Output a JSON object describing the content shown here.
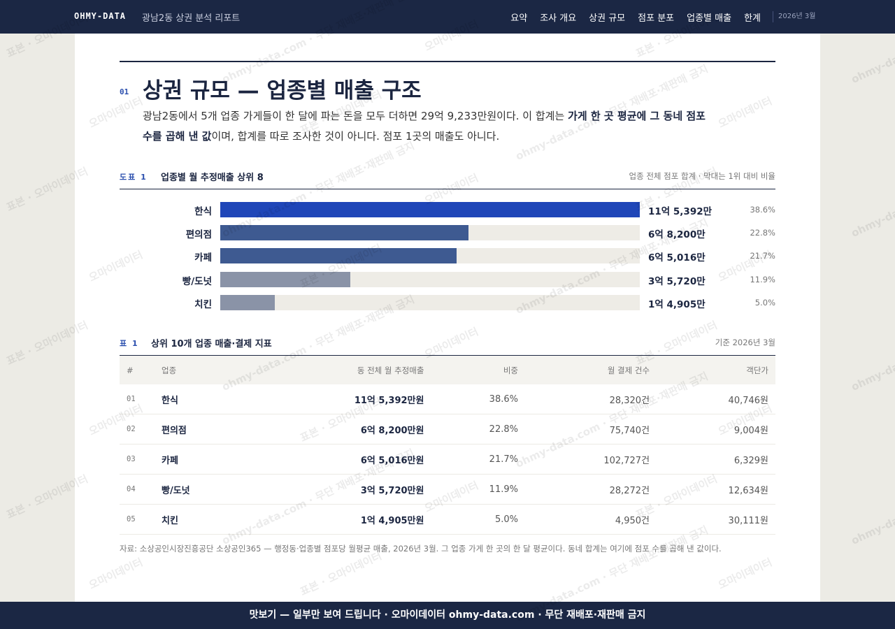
{
  "header": {
    "brand": "OHMY-DATA",
    "subtitle": "광남2동 상권 분석 리포트",
    "nav": [
      "요약",
      "조사 개요",
      "상권 규모",
      "점포 분포",
      "업종별 매출",
      "한계"
    ],
    "date": "2026년 3월"
  },
  "section": {
    "number": "01",
    "title": "상권 규모 — 업종별 매출 구조",
    "lead": [
      {
        "text": "광남2동에서 5개 업종 가게들이 한 달에 파는 돈을 모두 더하면 29억 9,233만원이다. 이 합계는 ",
        "bold": false
      },
      {
        "text": "가게 한 곳 평균에 그 동네 점포 수를 곱해 낸 값",
        "bold": true
      },
      {
        "text": "이며, 합계를 따로 조사한 것이 아니다. 점포 1곳의 매출도 아니다.",
        "bold": false
      }
    ]
  },
  "chart_data": {
    "type": "hbar",
    "label": "도표 1",
    "title": "업종별 월 추정매출 상위 8",
    "note": "업종 전체 점포 합계 · 막대는 1위 대비 비율",
    "categories": [
      "한식",
      "편의점",
      "카페",
      "빵/도넛",
      "치킨"
    ],
    "values": [
      115392,
      68200,
      65016,
      35720,
      14905
    ],
    "value_labels": [
      "11억 5,392만",
      "6억 8,200만",
      "6억 5,016만",
      "3억 5,720만",
      "1억 4,905만"
    ],
    "shares": [
      38.6,
      22.8,
      21.7,
      11.9,
      5.0
    ],
    "share_labels": [
      "38.6%",
      "22.8%",
      "21.7%",
      "11.9%",
      "5.0%"
    ],
    "colors": [
      "#1f46b8",
      "#3e5a91",
      "#3e5a91",
      "#8a93a7",
      "#8a93a7"
    ],
    "track_color": "#eeece6"
  },
  "table": {
    "label": "표 1",
    "title": "상위 10개 업종 매출·결제 지표",
    "note": "기준 2026년 3월",
    "columns": [
      "#",
      "업종",
      "동 전체 월 추정매출",
      "비중",
      "월 결제 건수",
      "객단가"
    ],
    "rows": [
      [
        "01",
        "한식",
        "11억 5,392만원",
        "38.6%",
        "28,320건",
        "40,746원"
      ],
      [
        "02",
        "편의점",
        "6억 8,200만원",
        "22.8%",
        "75,740건",
        "9,004원"
      ],
      [
        "03",
        "카페",
        "6억 5,016만원",
        "21.7%",
        "102,727건",
        "6,329원"
      ],
      [
        "04",
        "빵/도넛",
        "3억 5,720만원",
        "11.9%",
        "28,272건",
        "12,634원"
      ],
      [
        "05",
        "치킨",
        "1억 4,905만원",
        "5.0%",
        "4,950건",
        "30,111원"
      ]
    ]
  },
  "source": "자료: 소상공인시장진흥공단 소상공인365 — 행정동·업종별 점포당 월평균 매출, 2026년 3월. 그 업종 가게 한 곳의 한 달 평균이다. 동네 합계는 여기에 점포 수를 곱해 낸 값이다.",
  "footer": "맛보기 — 일부만 보여 드립니다 · 오마이데이터 ohmy-data.com · 무단 재배포·재판매 금지",
  "watermarks": [
    "표본 · 오마이데이터",
    "ohmy-data.com · 무단 재배포·재판매 금지",
    "오마이데이터"
  ]
}
